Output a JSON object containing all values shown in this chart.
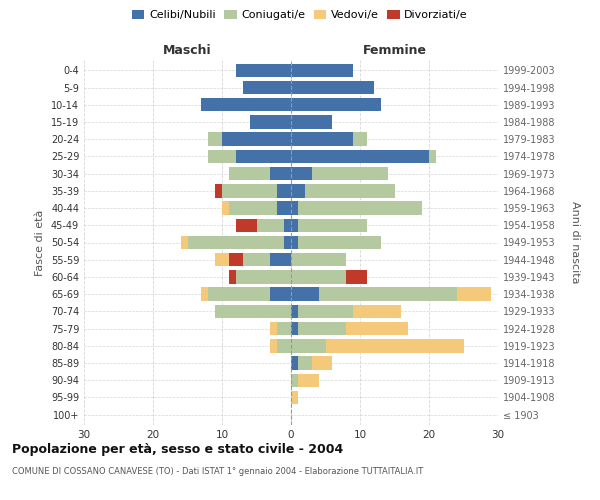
{
  "age_groups": [
    "100+",
    "95-99",
    "90-94",
    "85-89",
    "80-84",
    "75-79",
    "70-74",
    "65-69",
    "60-64",
    "55-59",
    "50-54",
    "45-49",
    "40-44",
    "35-39",
    "30-34",
    "25-29",
    "20-24",
    "15-19",
    "10-14",
    "5-9",
    "0-4"
  ],
  "birth_years": [
    "≤ 1903",
    "1904-1908",
    "1909-1913",
    "1914-1918",
    "1919-1923",
    "1924-1928",
    "1929-1933",
    "1934-1938",
    "1939-1943",
    "1944-1948",
    "1949-1953",
    "1954-1958",
    "1959-1963",
    "1964-1968",
    "1969-1973",
    "1974-1978",
    "1979-1983",
    "1984-1988",
    "1989-1993",
    "1994-1998",
    "1999-2003"
  ],
  "maschi": {
    "celibi": [
      0,
      0,
      0,
      0,
      0,
      0,
      0,
      3,
      0,
      3,
      1,
      1,
      2,
      2,
      3,
      8,
      10,
      6,
      13,
      7,
      8
    ],
    "coniugati": [
      0,
      0,
      0,
      0,
      2,
      2,
      11,
      9,
      8,
      4,
      14,
      4,
      7,
      8,
      6,
      4,
      2,
      0,
      0,
      0,
      0
    ],
    "vedovi": [
      0,
      0,
      0,
      0,
      1,
      1,
      0,
      1,
      0,
      2,
      1,
      0,
      1,
      0,
      0,
      0,
      0,
      0,
      0,
      0,
      0
    ],
    "divorziati": [
      0,
      0,
      0,
      0,
      0,
      0,
      0,
      0,
      1,
      2,
      0,
      3,
      0,
      1,
      0,
      0,
      0,
      0,
      0,
      0,
      0
    ]
  },
  "femmine": {
    "nubili": [
      0,
      0,
      0,
      1,
      0,
      1,
      1,
      4,
      0,
      0,
      1,
      1,
      1,
      2,
      3,
      20,
      9,
      6,
      13,
      12,
      9
    ],
    "coniugate": [
      0,
      0,
      1,
      2,
      5,
      7,
      8,
      20,
      8,
      8,
      12,
      10,
      18,
      13,
      11,
      1,
      2,
      0,
      0,
      0,
      0
    ],
    "vedove": [
      0,
      1,
      3,
      3,
      20,
      9,
      7,
      5,
      0,
      0,
      0,
      0,
      0,
      0,
      0,
      0,
      0,
      0,
      0,
      0,
      0
    ],
    "divorziate": [
      0,
      0,
      0,
      0,
      0,
      0,
      0,
      0,
      3,
      0,
      0,
      0,
      0,
      0,
      0,
      0,
      0,
      0,
      0,
      0,
      0
    ]
  },
  "colors": {
    "celibi_nubili": "#4472a8",
    "coniugati": "#b5c9a0",
    "vedovi": "#f5c97a",
    "divorziati": "#c0392b"
  },
  "xlim": 30,
  "title": "Popolazione per età, sesso e stato civile - 2004",
  "subtitle": "COMUNE DI COSSANO CANAVESE (TO) - Dati ISTAT 1° gennaio 2004 - Elaborazione TUTTAITALIA.IT",
  "ylabel_left": "Fasce di età",
  "ylabel_right": "Anni di nascita",
  "xlabel_left": "Maschi",
  "xlabel_right": "Femmine",
  "bg_color": "#ffffff",
  "grid_color": "#cccccc"
}
